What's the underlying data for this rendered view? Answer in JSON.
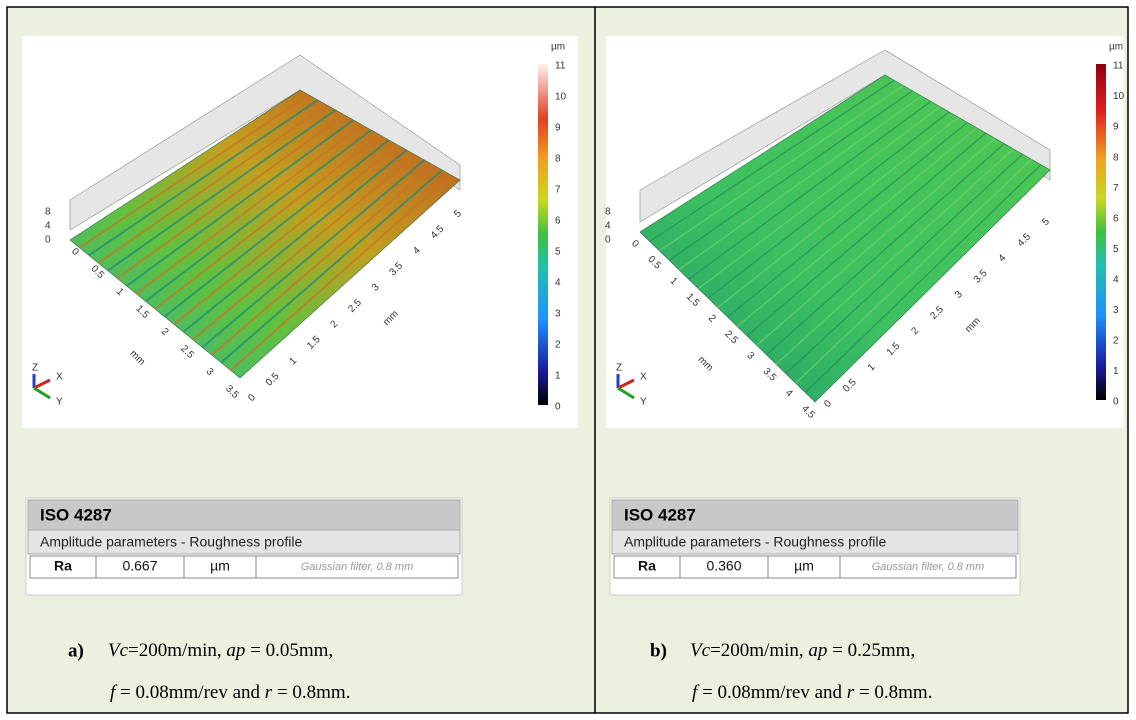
{
  "panels": [
    {
      "figure": {
        "colorbar_unit": "µm",
        "colorbar_ticks": [
          11,
          10,
          9,
          8,
          7,
          6,
          5,
          4,
          3,
          2,
          1,
          0
        ],
        "z_ticks": [
          8,
          4,
          0
        ],
        "y_ticks": [
          0,
          0.5,
          1,
          1.5,
          2,
          2.5,
          3,
          3.5
        ],
        "x_ticks": [
          0,
          0.5,
          1,
          1.5,
          2,
          2.5,
          3,
          3.5,
          4,
          4.5,
          5
        ],
        "y_axis_label": "mm",
        "x_axis_label": "mm",
        "triad": [
          "Z",
          "X",
          "Y"
        ]
      },
      "table": {
        "title": "ISO 4287",
        "subtitle": "Amplitude parameters - Roughness profile",
        "row": [
          "Ra",
          "0.667",
          "µm",
          "Gaussian filter, 0.8 mm"
        ]
      },
      "caption": {
        "label": "a)",
        "lines": [
          [
            {
              "text": "Vc",
              "italic": true
            },
            {
              "text": "=200m/min, "
            },
            {
              "text": "ap",
              "italic": true
            },
            {
              "text": " = 0.05mm,"
            }
          ],
          [
            {
              "text": "f",
              "italic": true
            },
            {
              "text": " = 0.08mm/rev and "
            },
            {
              "text": "r",
              "italic": true
            },
            {
              "text": " = 0.8mm."
            }
          ]
        ]
      }
    },
    {
      "figure": {
        "colorbar_unit": "µm",
        "colorbar_ticks": [
          11,
          10,
          9,
          8,
          7,
          6,
          5,
          4,
          3,
          2,
          1,
          0
        ],
        "z_ticks": [
          8,
          4,
          0
        ],
        "y_ticks": [
          0,
          0.5,
          1,
          1.5,
          2,
          2.5,
          3,
          3.5,
          4,
          4.5
        ],
        "x_ticks": [
          0,
          0.5,
          1,
          1.5,
          2,
          2.5,
          3,
          3.5,
          4,
          4.5,
          5
        ],
        "y_axis_label": "mm",
        "x_axis_label": "mm",
        "triad": [
          "Z",
          "X",
          "Y"
        ]
      },
      "table": {
        "title": "ISO 4287",
        "subtitle": "Amplitude parameters - Roughness profile",
        "row": [
          "Ra",
          "0.360",
          "µm",
          "Gaussian filter, 0.8 mm"
        ]
      },
      "caption": {
        "label": "b)",
        "lines": [
          [
            {
              "text": "Vc",
              "italic": true
            },
            {
              "text": "=200m/min, "
            },
            {
              "text": "ap",
              "italic": true
            },
            {
              "text": " = 0.25mm,"
            }
          ],
          [
            {
              "text": "f",
              "italic": true
            },
            {
              "text": " = 0.08mm/rev and "
            },
            {
              "text": "r",
              "italic": true
            },
            {
              "text": " = 0.8mm."
            }
          ]
        ]
      }
    }
  ]
}
